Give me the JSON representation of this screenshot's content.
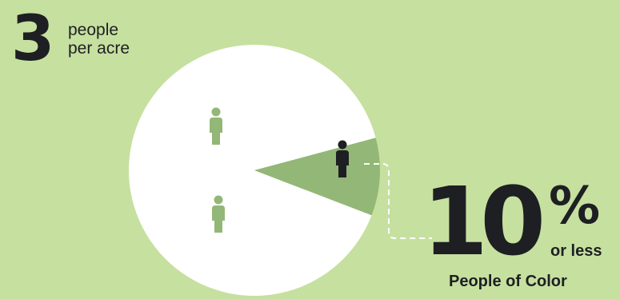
{
  "density": {
    "value": "3",
    "unit_line1": "people",
    "unit_line2": "per acre"
  },
  "callout": {
    "value": "10",
    "symbol": "%",
    "qualifier": "or less",
    "label": "People of Color"
  },
  "colors": {
    "background": "#c6e0a0",
    "majority_slice": "#ffffff",
    "minority_slice": "#93b777",
    "majority_icon": "#93b777",
    "minority_icon": "#1e1f22",
    "connector": "#ffffff"
  },
  "icons": {
    "majority": "person-icon",
    "minority": "person-icon"
  },
  "chart_data": {
    "type": "pie",
    "title": "",
    "slices": [
      {
        "label": "",
        "value": 90
      },
      {
        "label": "People of Color",
        "value": 10
      }
    ]
  }
}
